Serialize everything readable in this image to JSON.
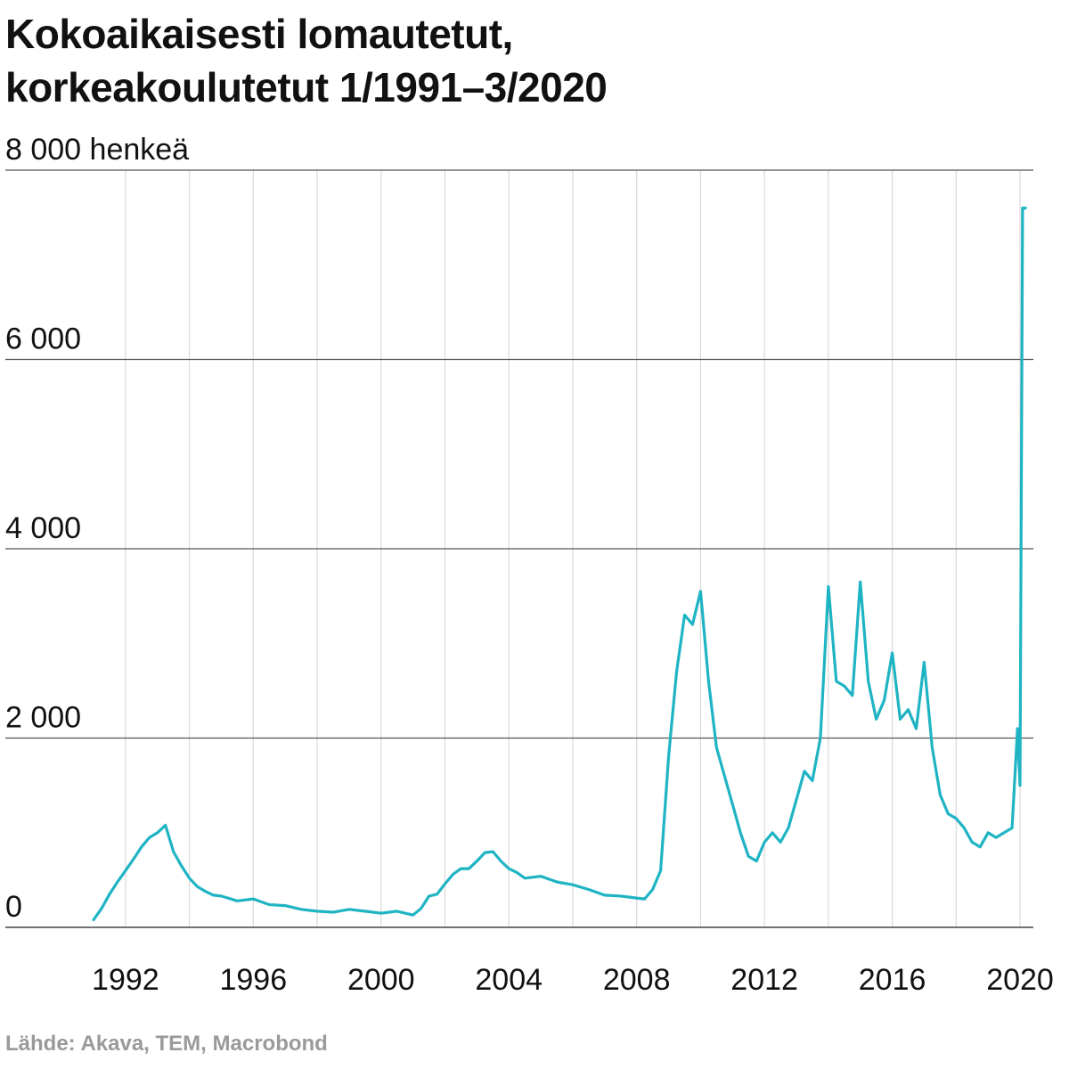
{
  "title_line1": "Kokoaikaisesti lomautetut,",
  "title_line2": "korkeakoulutetut 1/1991–3/2020",
  "source": "Lähde: Akava, TEM, Macrobond",
  "chart_data": {
    "type": "line",
    "title": "Kokoaikaisesti lomautetut, korkeakoulutetut 1/1991–3/2020",
    "ylabel": "henkeä",
    "ylim": [
      0,
      8000
    ],
    "xlim": [
      1991,
      2020.25
    ],
    "y_ticks": [
      0,
      2000,
      4000,
      6000,
      8000
    ],
    "y_tick_labels": [
      "0",
      "2 000",
      "4 000",
      "6 000",
      "8 000 henkeä"
    ],
    "x_ticks": [
      1992,
      1996,
      2000,
      2004,
      2008,
      2012,
      2016,
      2020
    ],
    "x_tick_labels": [
      "1992",
      "1996",
      "2000",
      "2004",
      "2008",
      "2012",
      "2016",
      "2020"
    ],
    "grid": true,
    "color": "#1fb4c4",
    "series": [
      {
        "name": "Kokoaikaisesti lomautetut, korkeakoulutetut",
        "x": [
          1991.0,
          1991.25,
          1991.5,
          1991.75,
          1992.0,
          1992.25,
          1992.5,
          1992.75,
          1993.0,
          1993.25,
          1993.5,
          1993.75,
          1994.0,
          1994.25,
          1994.5,
          1994.75,
          1995.0,
          1995.5,
          1996.0,
          1996.5,
          1997.0,
          1997.5,
          1998.0,
          1998.5,
          1999.0,
          1999.5,
          2000.0,
          2000.5,
          2001.0,
          2001.25,
          2001.5,
          2001.75,
          2002.0,
          2002.25,
          2002.5,
          2002.75,
          2003.0,
          2003.25,
          2003.5,
          2003.75,
          2004.0,
          2004.25,
          2004.5,
          2005.0,
          2005.5,
          2006.0,
          2006.5,
          2007.0,
          2007.5,
          2008.0,
          2008.25,
          2008.5,
          2008.75,
          2009.0,
          2009.25,
          2009.5,
          2009.75,
          2010.0,
          2010.25,
          2010.5,
          2010.75,
          2011.0,
          2011.25,
          2011.5,
          2011.75,
          2012.0,
          2012.25,
          2012.5,
          2012.75,
          2013.0,
          2013.25,
          2013.5,
          2013.75,
          2014.0,
          2014.25,
          2014.5,
          2014.75,
          2015.0,
          2015.25,
          2015.5,
          2015.75,
          2016.0,
          2016.25,
          2016.5,
          2016.75,
          2017.0,
          2017.25,
          2017.5,
          2017.75,
          2018.0,
          2018.25,
          2018.5,
          2018.75,
          2019.0,
          2019.25,
          2019.5,
          2019.75,
          2019.92,
          2020.0,
          2020.08,
          2020.17
        ],
        "values": [
          80,
          200,
          350,
          480,
          600,
          720,
          850,
          950,
          1000,
          1080,
          800,
          650,
          520,
          430,
          380,
          340,
          330,
          280,
          300,
          240,
          230,
          190,
          170,
          160,
          190,
          170,
          150,
          170,
          130,
          200,
          330,
          350,
          460,
          560,
          620,
          620,
          700,
          790,
          800,
          700,
          620,
          580,
          520,
          540,
          480,
          450,
          400,
          340,
          330,
          310,
          300,
          400,
          600,
          1800,
          2700,
          3300,
          3200,
          3550,
          2600,
          1900,
          1600,
          1300,
          1000,
          750,
          700,
          900,
          1000,
          900,
          1050,
          1350,
          1650,
          1550,
          2000,
          3600,
          2600,
          2550,
          2450,
          3650,
          2600,
          2200,
          2400,
          2900,
          2200,
          2300,
          2100,
          2800,
          1900,
          1400,
          1200,
          1150,
          1050,
          900,
          850,
          1000,
          950,
          1000,
          1050,
          2100,
          1500,
          7600,
          7600
        ]
      }
    ]
  }
}
